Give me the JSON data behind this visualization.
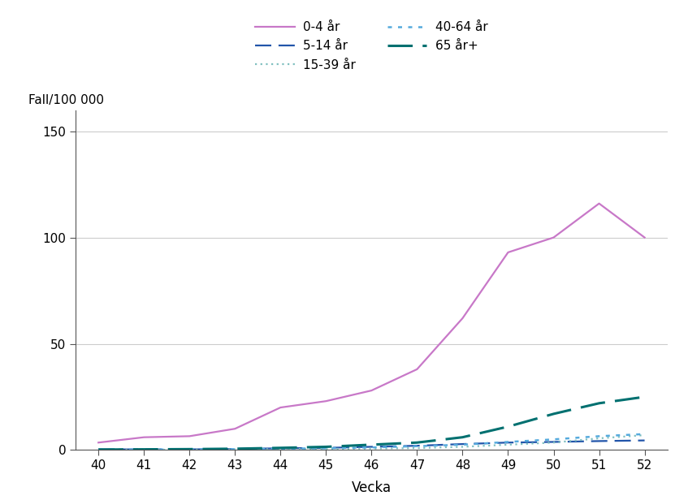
{
  "weeks": [
    40,
    41,
    42,
    43,
    44,
    45,
    46,
    47,
    48,
    49,
    50,
    51,
    52
  ],
  "series_order": [
    "0-4 år",
    "5-14 år",
    "15-39 år",
    "40-64 år",
    "65 år+"
  ],
  "series": {
    "0-4 år": {
      "values": [
        3.5,
        6.0,
        6.5,
        10.0,
        20.0,
        23.0,
        28.0,
        38.0,
        62.0,
        93.0,
        100.0,
        116.0,
        100.0
      ],
      "color": "#c878c8",
      "linestyle": "solid",
      "linewidth": 1.6,
      "dashes": null
    },
    "5-14 år": {
      "values": [
        0.3,
        0.3,
        0.3,
        0.5,
        0.8,
        1.0,
        1.5,
        2.0,
        2.8,
        3.5,
        3.8,
        4.2,
        4.5
      ],
      "color": "#2255aa",
      "linestyle": "dashed",
      "linewidth": 1.6,
      "dashes": [
        9,
        4
      ]
    },
    "15-39 år": {
      "values": [
        0.1,
        0.1,
        0.2,
        0.3,
        0.4,
        0.5,
        0.7,
        0.9,
        1.5,
        2.5,
        3.5,
        5.5,
        7.0
      ],
      "color": "#80c0c0",
      "linestyle": "dotted",
      "linewidth": 1.6,
      "dashes": [
        1,
        2
      ]
    },
    "40-64 år": {
      "values": [
        0.2,
        0.2,
        0.3,
        0.4,
        0.6,
        0.8,
        1.2,
        1.8,
        2.5,
        3.8,
        5.0,
        6.5,
        7.5
      ],
      "color": "#55aadd",
      "linestyle": "dotted",
      "linewidth": 1.8,
      "dashes": [
        2,
        3
      ]
    },
    "65 år+": {
      "values": [
        0.2,
        0.3,
        0.4,
        0.6,
        1.0,
        1.5,
        2.5,
        3.5,
        6.0,
        11.0,
        17.0,
        22.0,
        25.0
      ],
      "color": "#007070",
      "linestyle": "dashed",
      "linewidth": 2.2,
      "dashes": [
        10,
        4
      ]
    }
  },
  "xlabel": "Vecka",
  "ylabel": "Fall/100 000",
  "ylim": [
    0,
    160
  ],
  "yticks": [
    0,
    50,
    100,
    150
  ],
  "xlim": [
    39.5,
    52.5
  ],
  "xticks": [
    40,
    41,
    42,
    43,
    44,
    45,
    46,
    47,
    48,
    49,
    50,
    51,
    52
  ],
  "grid_color": "#cccccc",
  "background_color": "#ffffff",
  "spine_color": "#555555",
  "tick_color": "#555555"
}
